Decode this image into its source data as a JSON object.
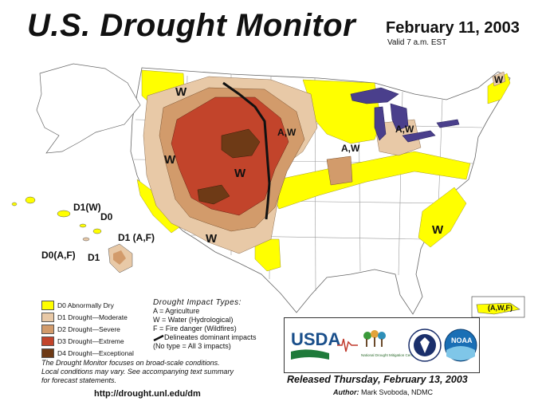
{
  "header": {
    "title": "U.S. Drought Monitor",
    "date": "February 11, 2003",
    "valid": "Valid 7 a.m. EST"
  },
  "map": {
    "labels": {
      "wa_w": "W",
      "ca_w": "W",
      "co_w": "W",
      "az_w": "W",
      "mn_aw": "A,W",
      "ne_aw": "A,W",
      "mi_aw": "A,W",
      "me_w": "W",
      "sc_w": "W",
      "hawaii_d1w": "D1(W)",
      "hawaii_d0": "D0",
      "hawaii_d0af": "D0(A,F)",
      "hawaii_d1": "D1",
      "hawaii_d1af": "D1 (A,F)",
      "pr_awf": "(A,W,F)"
    }
  },
  "legend": {
    "items": [
      {
        "label": "D0 Abnormally Dry",
        "color": "#ffff00"
      },
      {
        "label": "D1 Drought—Moderate",
        "color": "#e8c9a7"
      },
      {
        "label": "D2 Drought—Severe",
        "color": "#d29b6b"
      },
      {
        "label": "D3 Drought—Extreme",
        "color": "#c2442b"
      },
      {
        "label": "D4 Drought—Exceptional",
        "color": "#6e3a16"
      }
    ]
  },
  "impacts": {
    "title": "Drought Impact Types:",
    "a": "A = Agriculture",
    "w": "W = Water (Hydrological)",
    "f": "F = Fire danger (Wildfires)",
    "line": "Delineates dominant impacts",
    "none": "(No type = All 3 impacts)"
  },
  "note": {
    "line1": "The Drought Monitor focuses on broad-scale conditions.",
    "line2": "Local conditions may vary. See accompanying text summary",
    "line3": "for forecast statements."
  },
  "url": "http://drought.unl.edu/dm",
  "logos": {
    "usda": "USDA",
    "ndmc": "National Drought Mitigation Center",
    "noaa": "NOAA"
  },
  "release": {
    "released": "Released Thursday, February 13, 2003",
    "author_label": "Author:",
    "author_name": "Mark Svoboda, NDMC"
  }
}
